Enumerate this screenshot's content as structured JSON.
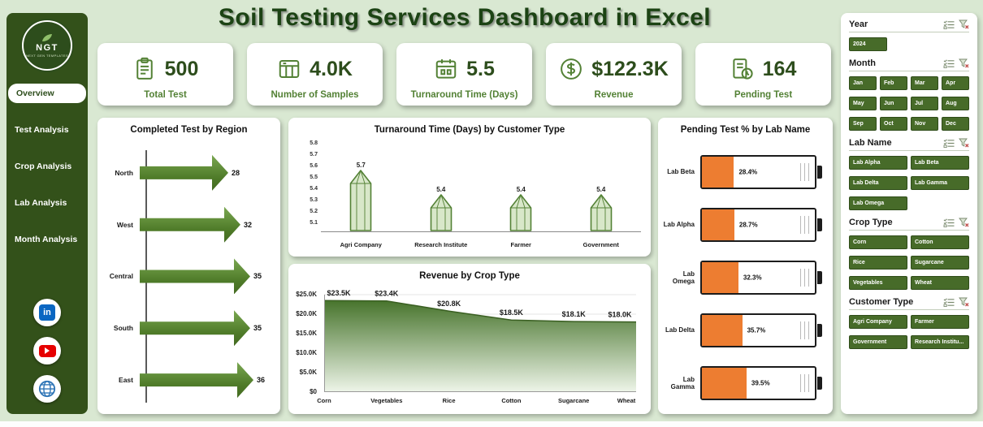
{
  "title": "Soil Testing Services Dashboard in Excel",
  "colors": {
    "primary_green": "#538135",
    "dark_green": "#33511a",
    "orange": "#ed7d31",
    "background": "#d9e8d2"
  },
  "sidebar": {
    "logo_text": "NGT",
    "logo_sub": "NEXT GEN TEMPLATES",
    "items": [
      {
        "label": "Overview",
        "active": true
      },
      {
        "label": "Test Analysis",
        "active": false
      },
      {
        "label": "Crop Analysis",
        "active": false
      },
      {
        "label": "Lab Analysis",
        "active": false
      },
      {
        "label": "Month Analysis",
        "active": false
      }
    ],
    "social_icons": [
      "linkedin-icon",
      "youtube-icon",
      "globe-icon"
    ]
  },
  "kpis": [
    {
      "icon": "tests-icon",
      "value": "500",
      "label": "Total Test"
    },
    {
      "icon": "samples-icon",
      "value": "4.0K",
      "label": "Number of Samples"
    },
    {
      "icon": "turnaround-icon",
      "value": "5.5",
      "label": "Turnaround Time (Days)"
    },
    {
      "icon": "revenue-icon",
      "value": "$122.3K",
      "label": "Revenue"
    },
    {
      "icon": "pending-icon",
      "value": "164",
      "label": "Pending Test"
    }
  ],
  "chart_data": [
    {
      "type": "bar",
      "orientation": "horizontal",
      "title": "Completed Test by Region",
      "categories": [
        "North",
        "West",
        "Central",
        "South",
        "East"
      ],
      "values": [
        28,
        32,
        35,
        35,
        36
      ],
      "xlim": [
        0,
        36
      ],
      "bar_style": "arrow"
    },
    {
      "type": "bar",
      "title": "Turnaround Time (Days) by Customer Type",
      "categories": [
        "Agri Company",
        "Research Institute",
        "Farmer",
        "Government"
      ],
      "values": [
        5.7,
        5.4,
        5.4,
        5.4
      ],
      "yticks": [
        "5.8",
        "5.7",
        "5.6",
        "5.5",
        "5.4",
        "5.3",
        "5.2",
        "5.1"
      ],
      "ylim": [
        5.1,
        5.8
      ],
      "bar_style": "pencil"
    },
    {
      "type": "area",
      "title": "Revenue by Crop Type",
      "categories": [
        "Corn",
        "Vegetables",
        "Rice",
        "Cotton",
        "Sugarcane",
        "Wheat"
      ],
      "values": [
        23.5,
        23.4,
        20.8,
        18.5,
        18.1,
        18.0
      ],
      "labels": [
        "$23.5K",
        "$23.4K",
        "$20.8K",
        "$18.5K",
        "$18.1K",
        "$18.0K"
      ],
      "yticks": [
        "$25.0K",
        "$20.0K",
        "$15.0K",
        "$10.0K",
        "$5.0K",
        "$0"
      ],
      "ylim": [
        0,
        25
      ],
      "grid": true
    },
    {
      "type": "bar",
      "orientation": "horizontal",
      "title": "Pending Test % by Lab Name",
      "categories": [
        "Lab Beta",
        "Lab Alpha",
        "Lab Omega",
        "Lab Delta",
        "Lab Gamma"
      ],
      "values": [
        28.4,
        28.7,
        32.3,
        35.7,
        39.5
      ],
      "labels": [
        "28.4%",
        "28.7%",
        "32.3%",
        "35.7%",
        "39.5%"
      ],
      "bar_style": "battery"
    }
  ],
  "slicers": [
    {
      "title": "Year",
      "cols": 3,
      "buttons": [
        "2024"
      ]
    },
    {
      "title": "Month",
      "cols": 4,
      "buttons": [
        "Jan",
        "Feb",
        "Mar",
        "Apr",
        "May",
        "Jun",
        "Jul",
        "Aug",
        "Sep",
        "Oct",
        "Nov",
        "Dec"
      ]
    },
    {
      "title": "Lab Name",
      "cols": 2,
      "buttons": [
        "Lab Alpha",
        "Lab Beta",
        "Lab Delta",
        "Lab Gamma",
        "Lab Omega"
      ]
    },
    {
      "title": "Crop Type",
      "cols": 2,
      "buttons": [
        "Corn",
        "Cotton",
        "Rice",
        "Sugarcane",
        "Vegetables",
        "Wheat"
      ]
    },
    {
      "title": "Customer Type",
      "cols": 2,
      "buttons": [
        "Agri Company",
        "Farmer",
        "Government",
        "Research Institu..."
      ]
    }
  ]
}
